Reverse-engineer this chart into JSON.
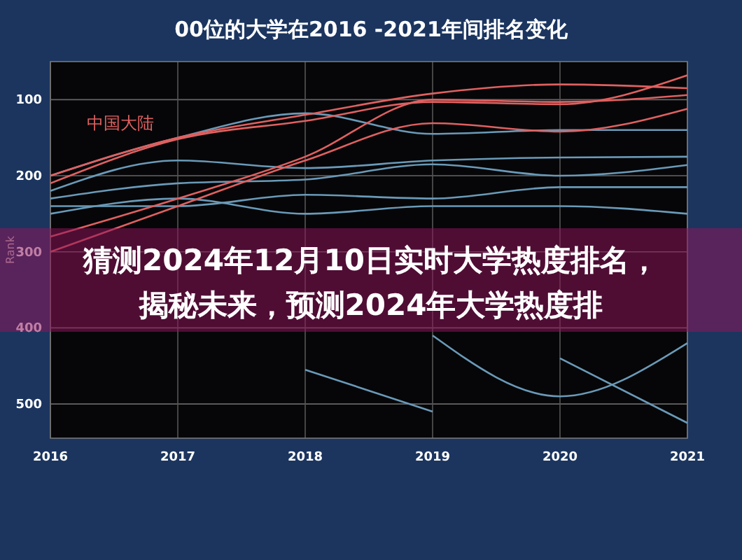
{
  "chart_data": {
    "type": "line",
    "title": "00位的大学在2016 -2021年间排名变化",
    "ylabel": "Rank",
    "x": [
      2016,
      2017,
      2018,
      2019,
      2020,
      2021
    ],
    "xlim": [
      2016,
      2021
    ],
    "xticks": [
      2016,
      2017,
      2018,
      2019,
      2020,
      2021
    ],
    "ylim": [
      545,
      50
    ],
    "yticks": [
      100,
      200,
      300,
      400,
      500
    ],
    "grid": true,
    "marker": "none",
    "line_style": "solid",
    "series": [
      {
        "color": "#6a9ab8",
        "values": [
          200,
          150,
          118,
          145,
          140,
          140
        ]
      },
      {
        "color": "#6a9ab8",
        "values": [
          220,
          180,
          190,
          180,
          176,
          175
        ]
      },
      {
        "color": "#6a9ab8",
        "values": [
          230,
          210,
          205,
          185,
          200,
          186
        ]
      },
      {
        "color": "#6a9ab8",
        "values": [
          240,
          240,
          225,
          230,
          215,
          215
        ]
      },
      {
        "color": "#6a9ab8",
        "values": [
          250,
          230,
          250,
          240,
          240,
          250
        ]
      },
      {
        "color": "#6a9ab8",
        "values": [
          null,
          null,
          455,
          510,
          null,
          null
        ]
      },
      {
        "color": "#6a9ab8",
        "values": [
          null,
          null,
          null,
          410,
          490,
          420
        ]
      },
      {
        "color": "#6a9ab8",
        "values": [
          null,
          null,
          null,
          null,
          440,
          525
        ]
      },
      {
        "color": "#e06060",
        "values": [
          200,
          150,
          120,
          92,
          80,
          85
        ]
      },
      {
        "color": "#e06060",
        "values": [
          210,
          152,
          128,
          103,
          106,
          68
        ]
      },
      {
        "color": "#e06060",
        "values": [
          280,
          230,
          175,
          100,
          103,
          94
        ]
      },
      {
        "color": "#e06060",
        "values": [
          300,
          240,
          180,
          131,
          142,
          112
        ]
      }
    ],
    "annotations": [
      "中国大陆",
      "猜测2024年12月10日实时大学热度排名，揭秘未来，预测2024年大学热度排"
    ]
  }
}
